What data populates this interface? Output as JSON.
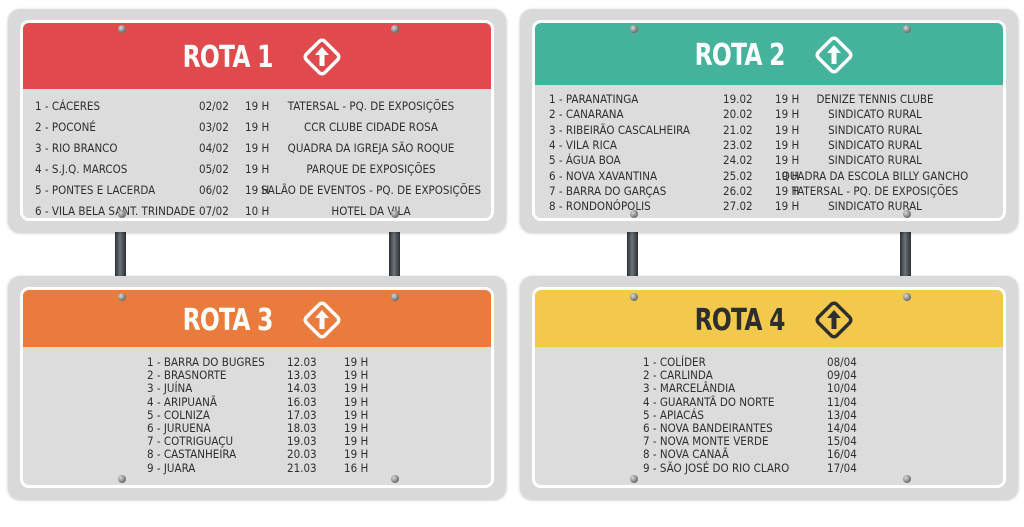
{
  "routes": [
    {
      "title": "ROTA 1",
      "rows": [
        {
          "city": "1 - CÁCERES",
          "date": "02/02",
          "time": "19 H",
          "venue": "TATERSAL - PQ. DE EXPOSIÇÕES"
        },
        {
          "city": "2 - POCONÉ",
          "date": "03/02",
          "time": "19 H",
          "venue": "CCR CLUBE CIDADE ROSA"
        },
        {
          "city": "3 - RIO BRANCO",
          "date": "04/02",
          "time": "19 H",
          "venue": "QUADRA DA IGREJA SÃO ROQUE"
        },
        {
          "city": "4 - S.J.Q. MARCOS",
          "date": "05/02",
          "time": "19 H",
          "venue": "PARQUE DE EXPOSIÇÕES"
        },
        {
          "city": "5 - PONTES E LACERDA",
          "date": "06/02",
          "time": "19 H",
          "venue": "SALÃO DE EVENTOS - PQ. DE EXPOSIÇÕES"
        },
        {
          "city": "6  - VILA BELA SANT. TRINDADE",
          "date": "07/02",
          "time": "10 H",
          "venue": "HOTEL DA VILA"
        }
      ]
    },
    {
      "title": "ROTA 2",
      "rows": [
        {
          "city": "1 - PARANATINGA",
          "date": "19.02",
          "time": "19 H",
          "venue": "DENIZE TENNIS CLUBE"
        },
        {
          "city": "2 - CANARANA",
          "date": "20.02",
          "time": "19 H",
          "venue": "SINDICATO RURAL"
        },
        {
          "city": "3 - RIBEIRÃO CASCALHEIRA",
          "date": "21.02",
          "time": "19 H",
          "venue": "SINDICATO RURAL"
        },
        {
          "city": "4 - VILA RICA",
          "date": "23.02",
          "time": "19 H",
          "venue": "SINDICATO RURAL"
        },
        {
          "city": "5 - ÁGUA BOA",
          "date": "24.02",
          "time": "19 H",
          "venue": "SINDICATO RURAL"
        },
        {
          "city": "6 - NOVA XAVANTINA",
          "date": "25.02",
          "time": "19 H",
          "venue": "QUADRA DA ESCOLA BILLY GANCHO"
        },
        {
          "city": "7 - BARRA DO GARÇAS",
          "date": "26.02",
          "time": "19 H",
          "venue": "TATERSAL - PQ. DE EXPOSIÇÕES"
        },
        {
          "city": "8 - RONDONÓPOLIS",
          "date": "27.02",
          "time": "19 H",
          "venue": "SINDICATO RURAL"
        }
      ]
    },
    {
      "title": "ROTA 3",
      "rows": [
        {
          "city": "1 - BARRA DO BUGRES",
          "date": "12.03",
          "time": "19 H"
        },
        {
          "city": "2 - BRASNORTE",
          "date": "13.03",
          "time": "19 H"
        },
        {
          "city": "3 - JUÍNA",
          "date": "14.03",
          "time": "19 H"
        },
        {
          "city": "4 - ARIPUANÃ",
          "date": "16.03",
          "time": "19 H"
        },
        {
          "city": "5 - COLNIZA",
          "date": "17.03",
          "time": "19 H"
        },
        {
          "city": "6 - JURUENA",
          "date": "18.03",
          "time": "19 H"
        },
        {
          "city": "7 - COTRIGUAÇU",
          "date": "19.03",
          "time": "19 H"
        },
        {
          "city": "8 - CASTANHEIRA",
          "date": "20.03",
          "time": "19 H"
        },
        {
          "city": "9 - JUARA",
          "date": "21.03",
          "time": "16 H"
        }
      ]
    },
    {
      "title": "ROTA 4",
      "rows": [
        {
          "city": "1 - COLÍDER",
          "date": "08/04"
        },
        {
          "city": "2 - CARLINDA",
          "date": "09/04"
        },
        {
          "city": "3 - MARCELÂNDIA",
          "date": "10/04"
        },
        {
          "city": "4 - GUARANTÃ DO NORTE",
          "date": "11/04"
        },
        {
          "city": "5 - APIACÁS",
          "date": "13/04"
        },
        {
          "city": "6 - NOVA BANDEIRANTES",
          "date": "14/04"
        },
        {
          "city": "7 - NOVA MONTE VERDE",
          "date": "15/04"
        },
        {
          "city": "8 - NOVA CANAÃ",
          "date": "16/04"
        },
        {
          "city": "9 - SÃO JOSÉ DO RIO CLARO",
          "date": "17/04"
        }
      ]
    }
  ],
  "colors": {
    "rota1": "#e04a4d",
    "rota2": "#45b39c",
    "rota3": "#e97c3c",
    "rota4": "#f2c94c",
    "title_light": "#ffffff",
    "title_dark": "#2e2e2e"
  },
  "icons": {
    "route_sign": "arrow-up-diamond-icon"
  }
}
